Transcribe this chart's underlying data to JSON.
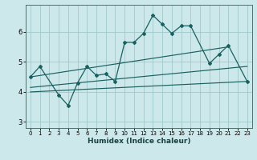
{
  "xlabel": "Humidex (Indice chaleur)",
  "background_color": "#cce8ea",
  "grid_color": "#9fc8cc",
  "line_color": "#1a6060",
  "ylim": [
    2.8,
    6.9
  ],
  "xlim": [
    -0.5,
    23.5
  ],
  "yticks": [
    3,
    4,
    5,
    6
  ],
  "xticks": [
    0,
    1,
    2,
    3,
    4,
    5,
    6,
    7,
    8,
    9,
    10,
    11,
    12,
    13,
    14,
    15,
    16,
    17,
    18,
    19,
    20,
    21,
    22,
    23
  ],
  "main_x": [
    0,
    1,
    3,
    4,
    5,
    6,
    7,
    8,
    9,
    10,
    11,
    12,
    13,
    14,
    15,
    16,
    17,
    19,
    20,
    21,
    23
  ],
  "main_y": [
    4.5,
    4.85,
    3.9,
    3.55,
    4.3,
    4.85,
    4.55,
    4.6,
    4.35,
    5.65,
    5.65,
    5.95,
    6.55,
    6.25,
    5.95,
    6.2,
    6.2,
    4.95,
    5.25,
    5.55,
    4.35
  ],
  "trend1_x": [
    0,
    21
  ],
  "trend1_y": [
    4.5,
    5.5
  ],
  "trend2_x": [
    0,
    23
  ],
  "trend2_y": [
    4.15,
    4.85
  ],
  "trend3_x": [
    0,
    23
  ],
  "trend3_y": [
    4.0,
    4.35
  ],
  "figsize": [
    3.2,
    2.0
  ],
  "dpi": 100
}
